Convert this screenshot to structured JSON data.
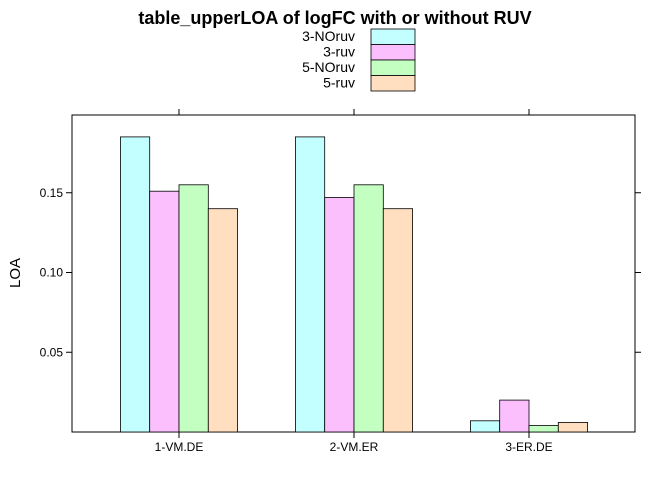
{
  "chart_data": {
    "type": "bar",
    "title": "table_upperLOA of logFC with or without RUV",
    "xlabel": "",
    "ylabel": "LOA",
    "categories": [
      "1-VM.DE",
      "2-VM.ER",
      "3-ER.DE"
    ],
    "ylim": [
      0,
      0.2
    ],
    "yticks": [
      0.05,
      0.1,
      0.15
    ],
    "ytick_labels": [
      "0.05",
      "0.10",
      "0.15"
    ],
    "legend_position": "top",
    "series": [
      {
        "name": "3-NOruv",
        "color": "#c2fffe",
        "values": [
          0.185,
          0.185,
          0.007
        ]
      },
      {
        "name": "3-ruv",
        "color": "#fcbffe",
        "values": [
          0.151,
          0.147,
          0.02
        ]
      },
      {
        "name": "5-NOruv",
        "color": "#c3ffc0",
        "values": [
          0.155,
          0.155,
          0.004
        ]
      },
      {
        "name": "5-ruv",
        "color": "#ffdfbf",
        "values": [
          0.14,
          0.14,
          0.006
        ]
      }
    ]
  }
}
